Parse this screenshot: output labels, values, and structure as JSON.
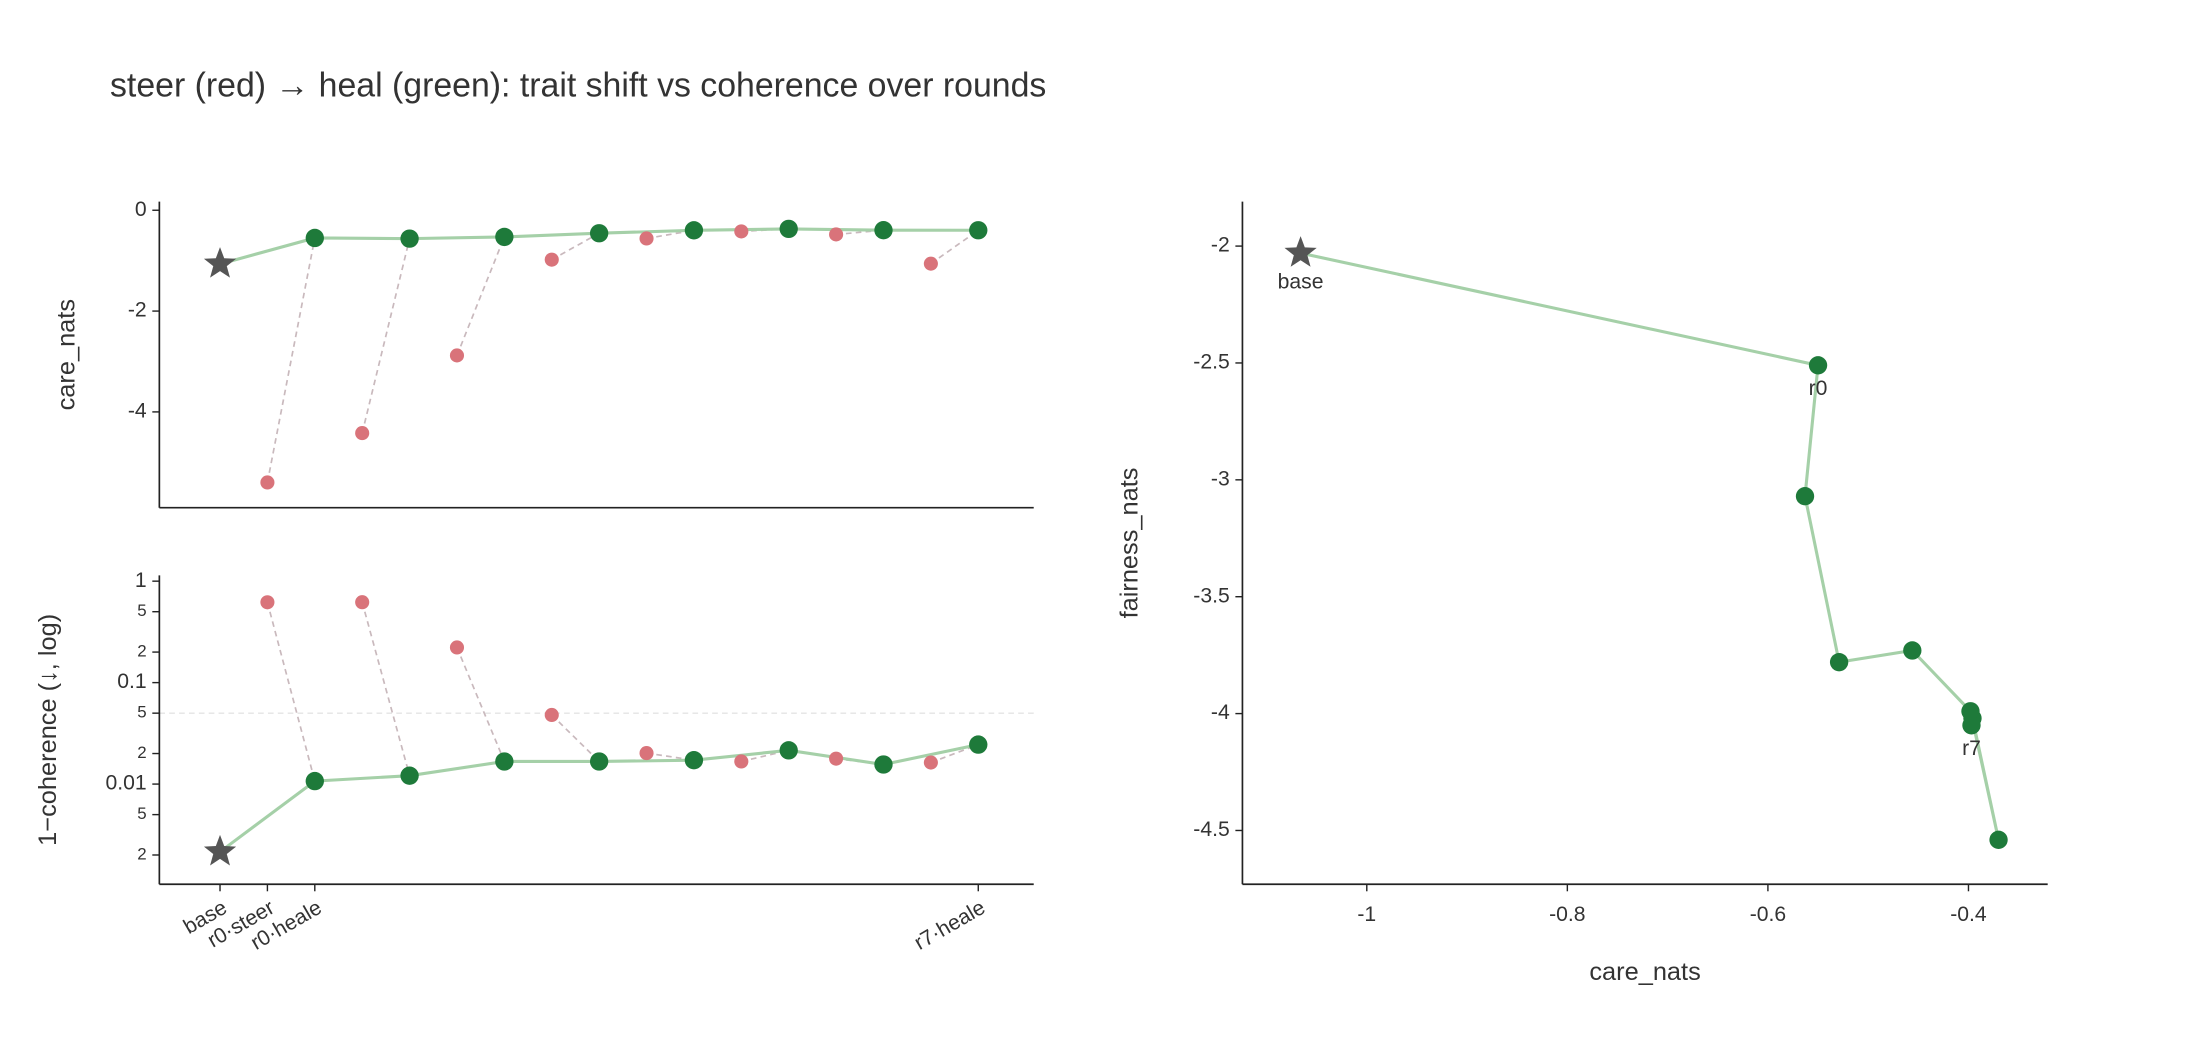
{
  "title": "steer (red) → heal (green): trait shift vs coherence over rounds",
  "chart_data": [
    {
      "type": "scatter",
      "y_label": "care_nats",
      "xlim": [
        -1.28,
        17.17
      ],
      "ylim": [
        -5.9,
        0.17
      ],
      "yticks": [
        0,
        -2,
        -4
      ],
      "series": [
        {
          "marker": "star",
          "color": "#555555",
          "x": [
            0
          ],
          "values": [
            -1.066
          ]
        },
        {
          "marker": "circle",
          "color": "#d9737a",
          "link_to_series": 2,
          "link_color": "#c9b9bd",
          "x": [
            1,
            3,
            5,
            7,
            9,
            11,
            13,
            15
          ],
          "values": [
            -5.4,
            -4.42,
            -2.88,
            -0.98,
            -0.56,
            -0.42,
            -0.48,
            -1.06
          ]
        },
        {
          "marker": "circle",
          "color": "#1e7a3a",
          "line_color": "#a5d0a8",
          "line_from_series": 0,
          "x": [
            2,
            4,
            6,
            8,
            10,
            12,
            14,
            16
          ],
          "values": [
            -0.55,
            -0.563,
            -0.529,
            -0.456,
            -0.398,
            -0.37,
            -0.396,
            -0.397
          ]
        }
      ]
    },
    {
      "type": "scatter",
      "y_label": "1−coherence (↓, log)",
      "log_y": true,
      "reference_line": 0.05,
      "xlim": [
        -1.28,
        17.17
      ],
      "ylim": [
        0.00103,
        1.14
      ],
      "xticks": [
        {
          "value": 0,
          "label": "base"
        },
        {
          "value": 1,
          "label": "r0·steer"
        },
        {
          "value": 2,
          "label": "r0·heale"
        },
        {
          "value": 16,
          "label": "r7·heale"
        }
      ],
      "yticks": [
        1,
        {
          "value": 0.5,
          "label": "5"
        },
        {
          "value": 0.2,
          "label": "2"
        },
        0.1,
        {
          "value": 0.05,
          "label": "5"
        },
        {
          "value": 0.02,
          "label": "2"
        },
        0.01,
        {
          "value": 0.005,
          "label": "5"
        },
        {
          "value": 0.002,
          "label": "2"
        }
      ],
      "series": [
        {
          "marker": "star",
          "color": "#555555",
          "x": [
            0
          ],
          "values": [
            0.00215
          ]
        },
        {
          "marker": "circle",
          "color": "#d9737a",
          "link_to_series": 2,
          "link_color": "#c9b9bd",
          "x": [
            1,
            3,
            5,
            7,
            9,
            11,
            13,
            15
          ],
          "values": [
            0.619,
            0.62,
            0.222,
            0.048,
            0.0202,
            0.0167,
            0.0178,
            0.0163
          ]
        },
        {
          "marker": "circle",
          "color": "#1e7a3a",
          "line_color": "#a5d0a8",
          "line_from_series": 0,
          "x": [
            2,
            4,
            6,
            8,
            10,
            12,
            14,
            16
          ],
          "values": [
            0.0107,
            0.0121,
            0.0167,
            0.0167,
            0.0172,
            0.0215,
            0.0156,
            0.0245
          ]
        }
      ]
    },
    {
      "type": "scatter",
      "x_label": "care_nats",
      "y_label": "fairness_nats",
      "xlim": [
        -1.124,
        -0.321
      ],
      "ylim": [
        -4.73,
        -1.81
      ],
      "xticks": [
        -1,
        -0.8,
        -0.6,
        -0.4
      ],
      "yticks": [
        -2,
        -2.5,
        -3,
        -3.5,
        -4,
        -4.5
      ],
      "series": [
        {
          "marker": "star",
          "color": "#555555",
          "x": [
            -1.066
          ],
          "values": [
            -2.03
          ],
          "labels": [
            "base"
          ]
        },
        {
          "marker": "circle",
          "color": "#1e7a3a",
          "line_color": "#a5d0a8",
          "line_from_series": 0,
          "x": [
            -0.55,
            -0.563,
            -0.529,
            -0.456,
            -0.398,
            -0.37,
            -0.396,
            -0.397
          ],
          "values": [
            -2.51,
            -3.07,
            -3.78,
            -3.73,
            -3.99,
            -4.54,
            -4.02,
            -4.05
          ],
          "labels": [
            "r0",
            null,
            null,
            null,
            null,
            null,
            null,
            "r7"
          ]
        }
      ]
    }
  ]
}
